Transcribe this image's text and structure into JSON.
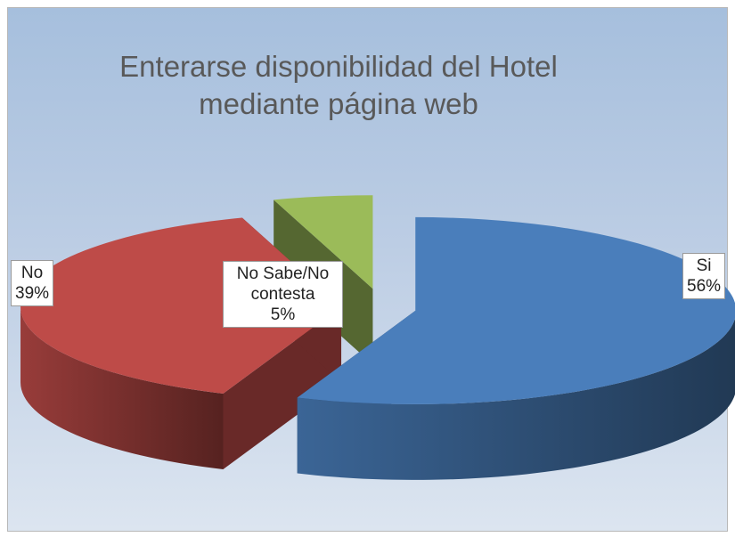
{
  "chart_data": {
    "type": "pie3d",
    "title": "Enterarse disponibilidad del Hotel mediante página web",
    "categories": [
      "Si",
      "No",
      "No Sabe/No contesta"
    ],
    "values": [
      56,
      39,
      5
    ],
    "value_labels": [
      "56%",
      "39%",
      "5%"
    ],
    "colors": [
      "#4a7ebb",
      "#be4b48",
      "#9bbb59"
    ]
  }
}
